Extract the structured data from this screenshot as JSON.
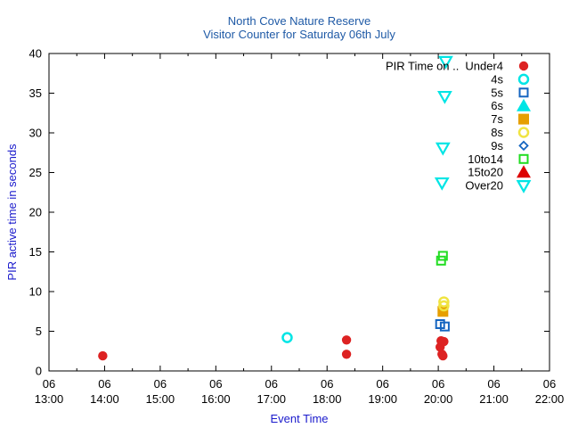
{
  "chart_data": {
    "type": "scatter",
    "title": "North Cove Nature Reserve",
    "subtitle": "Visitor Counter for Saturday 06th July",
    "xlabel": "Event Time",
    "ylabel": "PIR active time in seconds",
    "xlim": [
      "13:00",
      "22:00"
    ],
    "ylim": [
      0,
      40
    ],
    "x_ticks": [
      {
        "value": "13:00",
        "day": "06",
        "time": "13:00"
      },
      {
        "value": "14:00",
        "day": "06",
        "time": "14:00"
      },
      {
        "value": "15:00",
        "day": "06",
        "time": "15:00"
      },
      {
        "value": "16:00",
        "day": "06",
        "time": "16:00"
      },
      {
        "value": "17:00",
        "day": "06",
        "time": "17:00"
      },
      {
        "value": "18:00",
        "day": "06",
        "time": "18:00"
      },
      {
        "value": "19:00",
        "day": "06",
        "time": "19:00"
      },
      {
        "value": "20:00",
        "day": "06",
        "time": "20:00"
      },
      {
        "value": "21:00",
        "day": "06",
        "time": "21:00"
      },
      {
        "value": "22:00",
        "day": "06",
        "time": "22:00"
      }
    ],
    "y_ticks": [
      0,
      5,
      10,
      15,
      20,
      25,
      30,
      35,
      40
    ],
    "grid": false,
    "legend_position": "top-right",
    "legend_title": "PIR Time on ..",
    "series": [
      {
        "name": "Under4",
        "marker": "circle-filled",
        "color": "#dd2222",
        "points": [
          [
            "13:58",
            1.9
          ],
          [
            "18:21",
            3.9
          ],
          [
            "18:21",
            2.1
          ],
          [
            "20:02",
            3.0
          ],
          [
            "20:04",
            2.1
          ],
          [
            "20:03",
            3.8
          ],
          [
            "20:06",
            3.7
          ],
          [
            "20:05",
            1.9
          ]
        ]
      },
      {
        "name": "4s",
        "marker": "circle-open",
        "color": "#00e5e5",
        "points": [
          [
            "17:17",
            4.2
          ]
        ]
      },
      {
        "name": "5s",
        "marker": "square-open",
        "color": "#1565c0",
        "points": [
          [
            "20:02",
            5.9
          ],
          [
            "20:07",
            5.6
          ]
        ]
      },
      {
        "name": "6s",
        "marker": "triangle-filled",
        "color": "#00e5e5",
        "points": []
      },
      {
        "name": "7s",
        "marker": "square-filled",
        "color": "#e69f00",
        "points": [
          [
            "20:05",
            7.5
          ]
        ]
      },
      {
        "name": "8s",
        "marker": "circle-open",
        "color": "#f0e442",
        "points": [
          [
            "20:06",
            8.7
          ],
          [
            "20:06",
            8.2
          ]
        ]
      },
      {
        "name": "9s",
        "marker": "diamond-open",
        "color": "#1565c0",
        "points": []
      },
      {
        "name": "10to14",
        "marker": "square-open",
        "color": "#22dd22",
        "points": [
          [
            "20:03",
            13.9
          ],
          [
            "20:05",
            14.5
          ]
        ]
      },
      {
        "name": "15to20",
        "marker": "triangle-filled",
        "color": "#dd0000",
        "points": []
      },
      {
        "name": "Over20",
        "marker": "triangle-down-open",
        "color": "#00e5e5",
        "points": [
          [
            "20:08",
            39.0
          ],
          [
            "20:07",
            34.6
          ],
          [
            "20:05",
            28.1
          ],
          [
            "20:04",
            23.7
          ]
        ]
      }
    ]
  }
}
